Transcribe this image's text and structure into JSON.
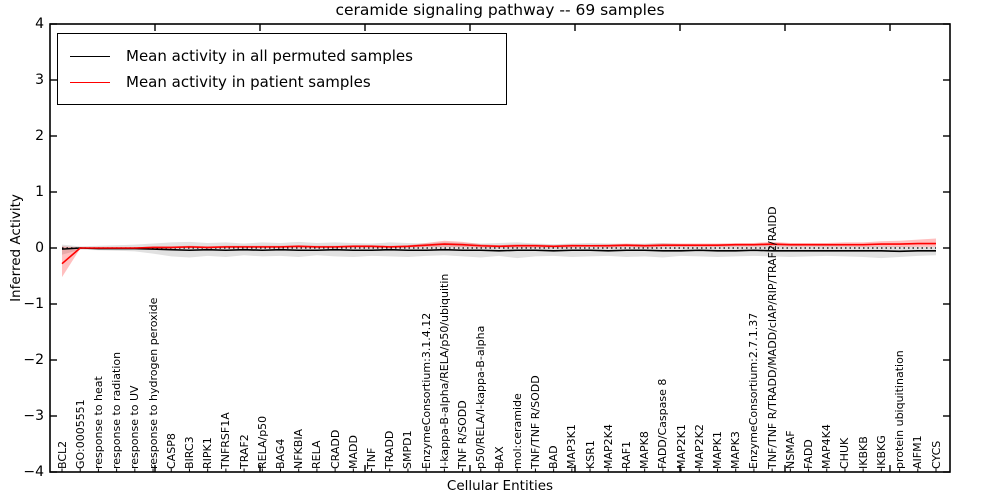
{
  "title": "ceramide signaling pathway -- 69 samples",
  "axes": {
    "ylabel": "Inferred Activity",
    "xlabel": "Cellular Entities",
    "yticks": [
      "4",
      "3",
      "2",
      "1",
      "0",
      "−1",
      "−2",
      "−3",
      "−4"
    ],
    "ytick_values": [
      4,
      3,
      2,
      1,
      0,
      -1,
      -2,
      -3,
      -4
    ]
  },
  "legend": {
    "items": [
      {
        "label": "Mean activity in all permuted samples",
        "color": "#000000"
      },
      {
        "label": "Mean activity in patient samples",
        "color": "#ff0000"
      }
    ]
  },
  "colors": {
    "permuted_line": "#000000",
    "patient_line": "#ff0000",
    "permuted_band": "#aaaaaa",
    "patient_band": "#ff0000",
    "zero_line": "#000000",
    "background": "#ffffff"
  },
  "chart_data": {
    "type": "line",
    "title": "ceramide signaling pathway -- 69 samples",
    "xlabel": "Cellular Entities",
    "ylabel": "Inferred Activity",
    "ylim": [
      -4,
      4
    ],
    "grid": false,
    "legend_position": "upper left",
    "reference_line": {
      "y": 0,
      "style": "dotted"
    },
    "categories": [
      "BCL2",
      "GO:0005551",
      "response to heat",
      "response to radiation",
      "response to UV",
      "response to hydrogen peroxide",
      "CASP8",
      "BIRC3",
      "RIPK1",
      "TNFRSF1A",
      "TRAF2",
      "RELA/p50",
      "BAG4",
      "NFKBIA",
      "RELA",
      "CRADD",
      "MADD",
      "TNF",
      "TRADD",
      "SMPD1",
      "EnzymeConsortium:3.1.4.12",
      "I-kappa-B-alpha/RELA/p50/ubiquitin",
      "TNF R/SODD",
      "p50/RELA/I-kappa-B-alpha",
      "BAX",
      "mol:ceramide",
      "TNF/TNF R/SODD",
      "BAD",
      "MAP3K1",
      "KSR1",
      "MAP2K4",
      "RAF1",
      "MAPK8",
      "FADD/Caspase 8",
      "MAP2K1",
      "MAP2K2",
      "MAPK1",
      "MAPK3",
      "EnzymeConsortium:2.7.1.37",
      "TNF/TNF R/TRADD/MADD/cIAP/RIP/TRAF2/RAIDD",
      "NSMAF",
      "FADD",
      "MAP4K4",
      "CHUK",
      "IKBKB",
      "IKBKG",
      "protein ubiquitination",
      "AIFM1",
      "CYCS"
    ],
    "series": [
      {
        "name": "Mean activity in all permuted samples",
        "type": "line",
        "color": "#000000",
        "values": [
          -0.02,
          0,
          -0.01,
          -0.01,
          -0.01,
          -0.02,
          -0.03,
          -0.04,
          -0.03,
          -0.04,
          -0.03,
          -0.04,
          -0.03,
          -0.04,
          -0.04,
          -0.03,
          -0.04,
          -0.04,
          -0.03,
          -0.04,
          -0.04,
          -0.03,
          -0.04,
          -0.04,
          -0.05,
          -0.04,
          -0.04,
          -0.05,
          -0.04,
          -0.04,
          -0.05,
          -0.04,
          -0.04,
          -0.05,
          -0.05,
          -0.04,
          -0.05,
          -0.05,
          -0.04,
          -0.05,
          -0.05,
          -0.05,
          -0.05,
          -0.05,
          -0.05,
          -0.05,
          -0.06,
          -0.05,
          -0.05
        ]
      },
      {
        "name": "Mean activity in patient samples",
        "type": "line",
        "color": "#ff0000",
        "values": [
          -0.28,
          0,
          0,
          0,
          0,
          0.01,
          0.01,
          0.02,
          0.01,
          0.02,
          0.02,
          0.02,
          0.02,
          0.03,
          0.02,
          0.02,
          0.03,
          0.03,
          0.02,
          0.03,
          0.05,
          0.07,
          0.06,
          0.04,
          0.03,
          0.04,
          0.04,
          0.03,
          0.04,
          0.04,
          0.04,
          0.05,
          0.04,
          0.05,
          0.05,
          0.05,
          0.05,
          0.06,
          0.06,
          0.07,
          0.06,
          0.06,
          0.06,
          0.06,
          0.06,
          0.07,
          0.07,
          0.08,
          0.08
        ]
      },
      {
        "name": "Permuted samples range band",
        "type": "band",
        "color": "#aaaaaa",
        "opacity": 0.35,
        "lower": [
          -0.12,
          -0.03,
          -0.04,
          -0.05,
          -0.06,
          -0.1,
          -0.15,
          -0.17,
          -0.14,
          -0.16,
          -0.13,
          -0.15,
          -0.14,
          -0.16,
          -0.13,
          -0.15,
          -0.16,
          -0.14,
          -0.15,
          -0.16,
          -0.14,
          -0.13,
          -0.15,
          -0.17,
          -0.14,
          -0.18,
          -0.15,
          -0.14,
          -0.16,
          -0.15,
          -0.14,
          -0.16,
          -0.15,
          -0.17,
          -0.14,
          -0.15,
          -0.16,
          -0.15,
          -0.14,
          -0.15,
          -0.16,
          -0.15,
          -0.14,
          -0.15,
          -0.16,
          -0.18,
          -0.16,
          -0.14,
          -0.13
        ],
        "upper": [
          0.06,
          0.03,
          0.04,
          0.05,
          0.06,
          0.08,
          0.1,
          0.11,
          0.09,
          0.1,
          0.08,
          0.1,
          0.09,
          0.11,
          0.09,
          0.1,
          0.09,
          0.08,
          0.1,
          0.09,
          0.08,
          0.1,
          0.09,
          0.08,
          0.09,
          0.1,
          0.08,
          0.07,
          0.08,
          0.09,
          0.08,
          0.07,
          0.08,
          0.09,
          0.07,
          0.06,
          0.07,
          0.06,
          0.05,
          0.06,
          0.05,
          0.04,
          0.05,
          0.04,
          0.03,
          0.04,
          0.03,
          0.02,
          0.02
        ]
      },
      {
        "name": "Patient samples range band",
        "type": "band",
        "color": "#ff0000",
        "opacity": 0.25,
        "lower": [
          -0.52,
          -0.01,
          -0.01,
          -0.01,
          -0.01,
          -0.01,
          -0.01,
          0,
          -0.01,
          0,
          0,
          0,
          0,
          0.01,
          0,
          0,
          0.01,
          0.01,
          0,
          0.01,
          0.02,
          0.02,
          0.02,
          0.01,
          0.01,
          0.01,
          0.01,
          0.01,
          0.01,
          0.02,
          0.01,
          0.02,
          0.01,
          0.02,
          0.02,
          0.02,
          0.02,
          0.03,
          0.03,
          0.03,
          0.03,
          0.03,
          0.03,
          0.03,
          0.02,
          0.03,
          0.02,
          0.02,
          0.02
        ],
        "upper": [
          0.03,
          0.01,
          0.01,
          0.01,
          0.01,
          0.03,
          0.03,
          0.04,
          0.03,
          0.04,
          0.04,
          0.04,
          0.04,
          0.05,
          0.04,
          0.04,
          0.05,
          0.05,
          0.04,
          0.05,
          0.09,
          0.13,
          0.11,
          0.07,
          0.05,
          0.07,
          0.07,
          0.05,
          0.07,
          0.06,
          0.07,
          0.08,
          0.07,
          0.08,
          0.08,
          0.08,
          0.08,
          0.09,
          0.09,
          0.11,
          0.09,
          0.09,
          0.09,
          0.1,
          0.1,
          0.12,
          0.13,
          0.15,
          0.17
        ]
      }
    ]
  }
}
